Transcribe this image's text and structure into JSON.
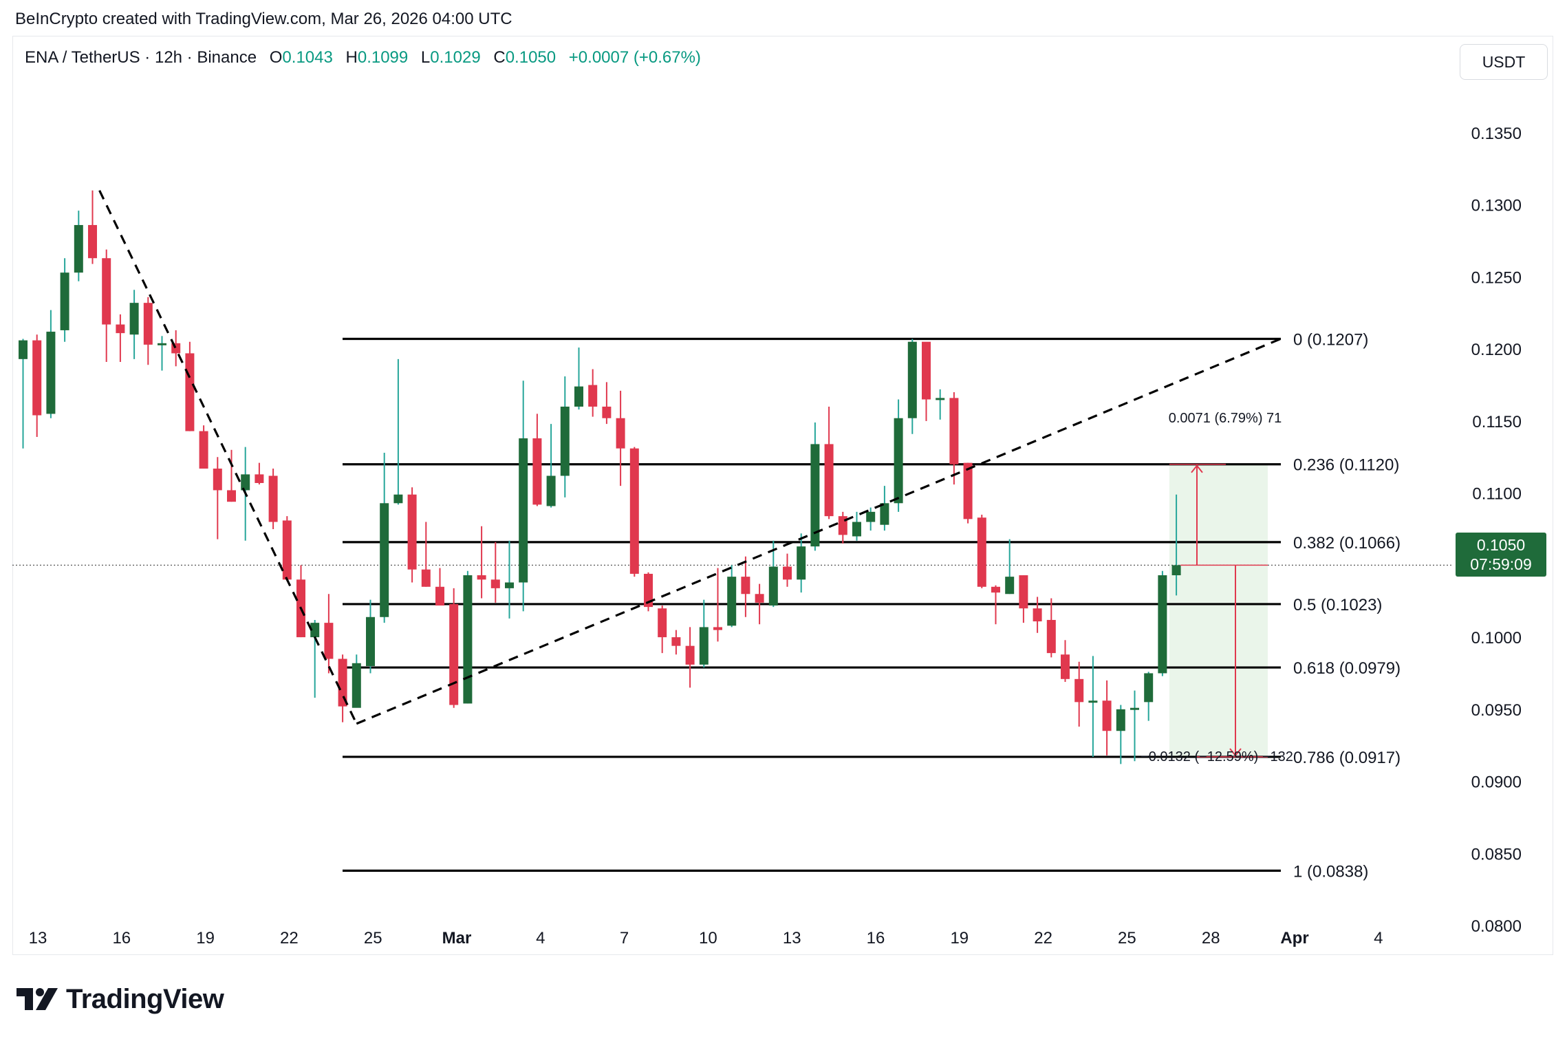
{
  "credit": "BeInCrypto created with TradingView.com, Mar 26, 2026 04:00 UTC",
  "legend": {
    "symbol": "ENA / TetherUS · 12h · Binance",
    "o_label": "O",
    "o": "0.1043",
    "h_label": "H",
    "h": "0.1099",
    "l_label": "L",
    "l": "0.1029",
    "c_label": "C",
    "c": "0.1050",
    "change": "+0.0007 (+0.67%)"
  },
  "currency_button": "USDT",
  "price_tag": {
    "price": "0.1050",
    "countdown": "07:59:09"
  },
  "brand": "TradingView",
  "colors": {
    "up": "#1f6b3a",
    "up_wick": "#26a69a",
    "down": "#e0384e",
    "fib_line": "#000000",
    "measure": "#e0384e",
    "measure_bg": "#eaf5ea"
  },
  "chart_data": {
    "type": "candlestick",
    "interval": "12h",
    "x_ticks": [
      "13",
      "16",
      "19",
      "22",
      "25",
      "Mar",
      "4",
      "7",
      "10",
      "13",
      "16",
      "19",
      "22",
      "25",
      "28",
      "Apr",
      "4"
    ],
    "y_ticks": [
      "0.1350",
      "0.1300",
      "0.1250",
      "0.1200",
      "0.1150",
      "0.1100",
      "0.1050",
      "0.1000",
      "0.0950",
      "0.0900",
      "0.0850",
      "0.0800"
    ],
    "y_range": [
      0.0768,
      0.1408
    ],
    "current_price": 0.105,
    "candles": [
      [
        0.1193,
        0.1206,
        0.1131,
        0.1207
      ],
      [
        0.1206,
        0.1154,
        0.1139,
        0.121
      ],
      [
        0.1155,
        0.1212,
        0.1152,
        0.1227
      ],
      [
        0.1213,
        0.1253,
        0.1205,
        0.1263
      ],
      [
        0.1253,
        0.1286,
        0.1247,
        0.1296
      ],
      [
        0.1286,
        0.1263,
        0.1259,
        0.131
      ],
      [
        0.1263,
        0.1217,
        0.1191,
        0.1269
      ],
      [
        0.1217,
        0.1211,
        0.1191,
        0.1224
      ],
      [
        0.121,
        0.1232,
        0.1193,
        0.1241
      ],
      [
        0.1232,
        0.1203,
        0.1189,
        0.1236
      ],
      [
        0.1203,
        0.1204,
        0.1185,
        0.1209
      ],
      [
        0.1204,
        0.1197,
        0.1188,
        0.1213
      ],
      [
        0.1197,
        0.1143,
        0.1143,
        0.1205
      ],
      [
        0.1143,
        0.1117,
        0.1117,
        0.1147
      ],
      [
        0.1117,
        0.1102,
        0.1068,
        0.1125
      ],
      [
        0.1102,
        0.1094,
        0.1094,
        0.113
      ],
      [
        0.1102,
        0.1113,
        0.1067,
        0.1132
      ],
      [
        0.1113,
        0.1107,
        0.1106,
        0.1121
      ],
      [
        0.1112,
        0.108,
        0.1075,
        0.1117
      ],
      [
        0.1081,
        0.104,
        0.1039,
        0.1084
      ],
      [
        0.104,
        0.1,
        0.1,
        0.105
      ],
      [
        0.1,
        0.101,
        0.0958,
        0.1012
      ],
      [
        0.101,
        0.0985,
        0.0975,
        0.103
      ],
      [
        0.0985,
        0.0952,
        0.0941,
        0.0988
      ],
      [
        0.0951,
        0.0982,
        0.0952,
        0.0988
      ],
      [
        0.098,
        0.1014,
        0.0975,
        0.1026
      ],
      [
        0.1014,
        0.1093,
        0.101,
        0.1128
      ],
      [
        0.1093,
        0.1099,
        0.1092,
        0.1193
      ],
      [
        0.1099,
        0.1047,
        0.1038,
        0.1104
      ],
      [
        0.1047,
        0.1035,
        0.1035,
        0.108
      ],
      [
        0.1035,
        0.1022,
        0.1022,
        0.1048
      ],
      [
        0.1023,
        0.0953,
        0.0951,
        0.1034
      ],
      [
        0.0954,
        0.1043,
        0.0954,
        0.1046
      ],
      [
        0.1043,
        0.104,
        0.1027,
        0.1077
      ],
      [
        0.104,
        0.1034,
        0.1024,
        0.1066
      ],
      [
        0.1034,
        0.1038,
        0.1013,
        0.1067
      ],
      [
        0.1038,
        0.1138,
        0.1018,
        0.1178
      ],
      [
        0.1138,
        0.1092,
        0.1091,
        0.1155
      ],
      [
        0.1091,
        0.1112,
        0.109,
        0.1148
      ],
      [
        0.1112,
        0.116,
        0.1097,
        0.1181
      ],
      [
        0.116,
        0.1174,
        0.1158,
        0.1201
      ],
      [
        0.1175,
        0.116,
        0.1153,
        0.1186
      ],
      [
        0.116,
        0.1152,
        0.1148,
        0.1177
      ],
      [
        0.1152,
        0.1131,
        0.1105,
        0.1171
      ],
      [
        0.1131,
        0.1044,
        0.1042,
        0.1132
      ],
      [
        0.1044,
        0.1021,
        0.1018,
        0.1045
      ],
      [
        0.102,
        0.1,
        0.0989,
        0.1022
      ],
      [
        0.1,
        0.0994,
        0.0988,
        0.1005
      ],
      [
        0.0994,
        0.0981,
        0.0965,
        0.1007
      ],
      [
        0.0981,
        0.1007,
        0.0979,
        0.1026
      ],
      [
        0.1007,
        0.1005,
        0.0997,
        0.1048
      ],
      [
        0.1008,
        0.1042,
        0.1007,
        0.105
      ],
      [
        0.1042,
        0.103,
        0.1014,
        0.1056
      ],
      [
        0.103,
        0.1024,
        0.1009,
        0.1037
      ],
      [
        0.1022,
        0.1049,
        0.1021,
        0.1067
      ],
      [
        0.1049,
        0.104,
        0.1035,
        0.1058
      ],
      [
        0.104,
        0.1063,
        0.1031,
        0.1072
      ],
      [
        0.1063,
        0.1134,
        0.106,
        0.1149
      ],
      [
        0.1134,
        0.1084,
        0.1082,
        0.116
      ],
      [
        0.1084,
        0.1071,
        0.1065,
        0.1087
      ],
      [
        0.107,
        0.108,
        0.1067,
        0.1087
      ],
      [
        0.108,
        0.1087,
        0.1074,
        0.109
      ],
      [
        0.1078,
        0.1093,
        0.1074,
        0.1105
      ],
      [
        0.1093,
        0.1152,
        0.1087,
        0.1165
      ],
      [
        0.1152,
        0.1205,
        0.1141,
        0.1207
      ],
      [
        0.1205,
        0.1165,
        0.115,
        0.1203
      ],
      [
        0.1166,
        0.1166,
        0.1151,
        0.1172
      ],
      [
        0.1166,
        0.112,
        0.1106,
        0.117
      ],
      [
        0.1121,
        0.1082,
        0.1079,
        0.1121
      ],
      [
        0.1083,
        0.1035,
        0.1034,
        0.1085
      ],
      [
        0.1035,
        0.1031,
        0.1009,
        0.1036
      ],
      [
        0.103,
        0.1042,
        0.103,
        0.1068
      ],
      [
        0.1043,
        0.102,
        0.101,
        0.1043
      ],
      [
        0.102,
        0.1011,
        0.1003,
        0.1028
      ],
      [
        0.1012,
        0.0989,
        0.0986,
        0.1027
      ],
      [
        0.0988,
        0.0971,
        0.0969,
        0.0998
      ],
      [
        0.0971,
        0.0955,
        0.0938,
        0.0983
      ],
      [
        0.0956,
        0.0956,
        0.0917,
        0.0987
      ],
      [
        0.0956,
        0.0935,
        0.0918,
        0.097
      ],
      [
        0.0935,
        0.095,
        0.0912,
        0.0953
      ],
      [
        0.0951,
        0.0951,
        0.0914,
        0.0963
      ],
      [
        0.0955,
        0.0975,
        0.0942,
        0.0976
      ],
      [
        0.0975,
        0.1043,
        0.0973,
        0.1046
      ],
      [
        0.1043,
        0.105,
        0.1029,
        0.1099
      ]
    ],
    "fib_levels": [
      {
        "ratio": 0,
        "price": 0.1207,
        "label": "0 (0.1207)"
      },
      {
        "ratio": 0.236,
        "price": 0.112,
        "label": "0.236 (0.1120)"
      },
      {
        "ratio": 0.382,
        "price": 0.1066,
        "label": "0.382 (0.1066)"
      },
      {
        "ratio": 0.5,
        "price": 0.1023,
        "label": "0.5 (0.1023)"
      },
      {
        "ratio": 0.618,
        "price": 0.0979,
        "label": "0.618 (0.0979)"
      },
      {
        "ratio": 0.786,
        "price": 0.0917,
        "label": "0.786 (0.0917)"
      },
      {
        "ratio": 1,
        "price": 0.0838,
        "label": "1 (0.0838)"
      }
    ],
    "trend_lines": [
      {
        "from": [
          5.5,
          0.131
        ],
        "to": [
          24.0,
          0.094
        ]
      },
      {
        "from": [
          24.0,
          0.094
        ],
        "to": [
          90.5,
          0.1207
        ]
      }
    ],
    "measurements": [
      {
        "label": "0.0071 (6.79%) 71",
        "from_price": 0.105,
        "to_price": 0.112
      },
      {
        "label": "−0.0132 (−12.59%) −132",
        "from_price": 0.105,
        "to_price": 0.0917
      }
    ]
  }
}
